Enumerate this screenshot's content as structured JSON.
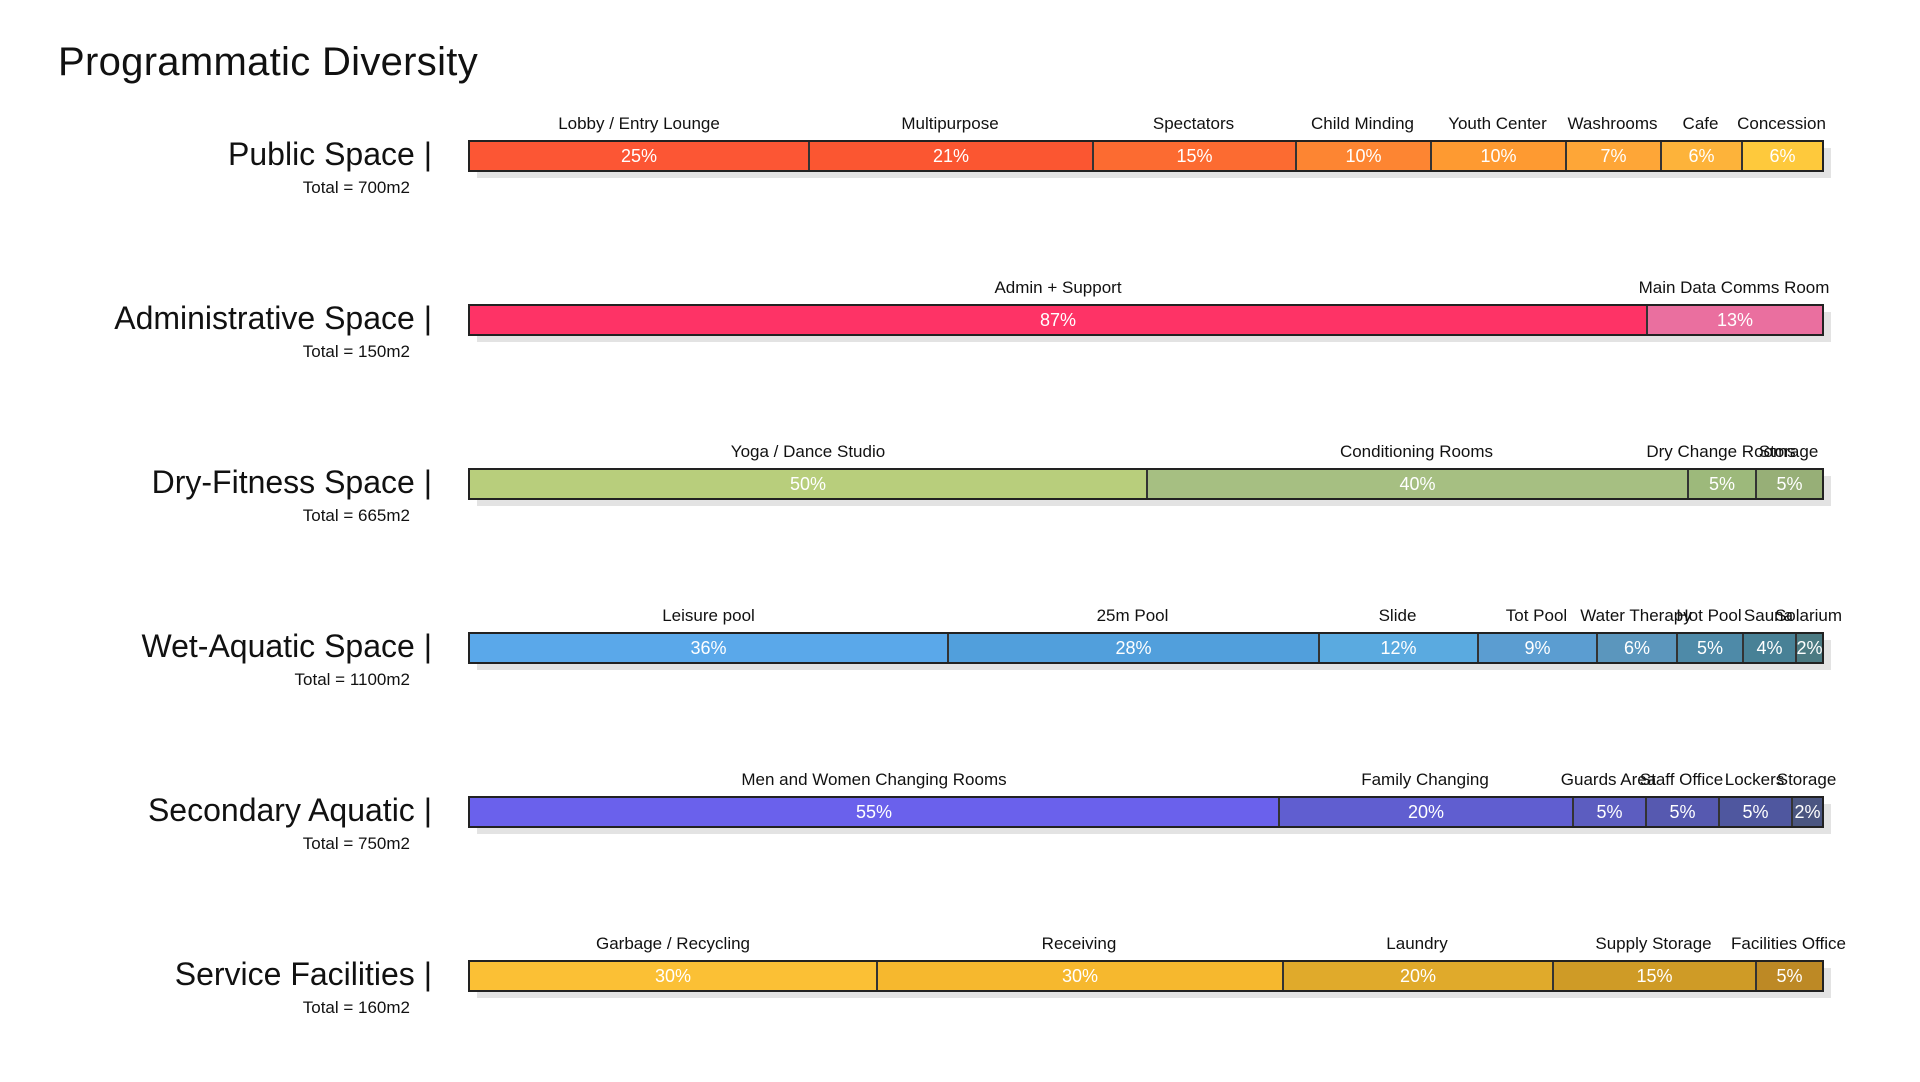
{
  "title": "Programmatic Diversity",
  "chart_data": {
    "type": "bar",
    "title": "Programmatic Diversity",
    "rows": [
      {
        "name": "Public Space |",
        "total": "Total = 700m2",
        "segments": [
          {
            "label": "Lobby / Entry Lounge",
            "text": "25%",
            "color": "#fc5634"
          },
          {
            "label": "Multipurpose",
            "text": "21%",
            "color": "#fb5631"
          },
          {
            "label": "Spectators",
            "text": "15%",
            "color": "#fc6b31"
          },
          {
            "label": "Child Minding",
            "text": "10%",
            "color": "#fd8532"
          },
          {
            "label": "Youth Center",
            "text": "10%",
            "color": "#fe9a31"
          },
          {
            "label": "Washrooms",
            "text": "7%",
            "color": "#fea637"
          },
          {
            "label": "Cafe",
            "text": "6%",
            "color": "#fdb33a"
          },
          {
            "label": "Concession",
            "text": "6%",
            "color": "#fec93c"
          }
        ]
      },
      {
        "name": "Administrative Space |",
        "total": "Total = 150m2",
        "segments": [
          {
            "label": "Admin + Support",
            "text": "87%",
            "color": "#fe3366"
          },
          {
            "label": "Main Data Comms Room",
            "text": "13%",
            "color": "#ea6f9f"
          }
        ]
      },
      {
        "name": "Dry-Fitness Space |",
        "total": "Total = 665m2",
        "segments": [
          {
            "label": "Yoga / Dance Studio",
            "text": "50%",
            "color": "#b8ce7c"
          },
          {
            "label": "Conditioning Rooms",
            "text": "40%",
            "color": "#a6bf82"
          },
          {
            "label": "Dry Change Rooms",
            "text": "5%",
            "color": "#9db97b"
          },
          {
            "label": "Storage",
            "text": "5%",
            "color": "#97af77"
          }
        ]
      },
      {
        "name": "Wet-Aquatic Space |",
        "total": "Total = 1100m2",
        "segments": [
          {
            "label": "Leisure pool",
            "text": "36%",
            "color": "#5aa8ea"
          },
          {
            "label": "25m Pool",
            "text": "28%",
            "color": "#519fdc"
          },
          {
            "label": "Slide",
            "text": "12%",
            "color": "#5aaae0"
          },
          {
            "label": "Tot Pool",
            "text": "9%",
            "color": "#5b9dd1"
          },
          {
            "label": "Water Therapy",
            "text": "6%",
            "color": "#5b96bd"
          },
          {
            "label": "Hot Pool",
            "text": "5%",
            "color": "#4e8aa8"
          },
          {
            "label": "Sauna",
            "text": "4%",
            "color": "#488196"
          },
          {
            "label": "Solarium",
            "text": "2%",
            "color": "#4b7a82"
          }
        ]
      },
      {
        "name": "Secondary Aquatic |",
        "total": "Total = 750m2",
        "segments": [
          {
            "label": "Men and Women Changing Rooms",
            "text": "55%",
            "color": "#6a61ec"
          },
          {
            "label": "Family Changing",
            "text": "20%",
            "color": "#605ed0"
          },
          {
            "label": "Guards Area",
            "text": "5%",
            "color": "#5c5dc0"
          },
          {
            "label": "Staff Office",
            "text": "5%",
            "color": "#5659b0"
          },
          {
            "label": "Lockers",
            "text": "5%",
            "color": "#4f579f"
          },
          {
            "label": "Storage",
            "text": "2%",
            "color": "#4b5681"
          }
        ]
      },
      {
        "name": "Service Facilities |",
        "total": "Total = 160m2",
        "segments": [
          {
            "label": "Garbage / Recycling",
            "text": "30%",
            "color": "#fbc035"
          },
          {
            "label": "Receiving",
            "text": "30%",
            "color": "#f6b82e"
          },
          {
            "label": "Laundry",
            "text": "20%",
            "color": "#e0aa2b"
          },
          {
            "label": "Supply Storage",
            "text": "15%",
            "color": "#cf9b26"
          },
          {
            "label": "Facilities Office",
            "text": "5%",
            "color": "#bd8925"
          }
        ]
      }
    ]
  }
}
